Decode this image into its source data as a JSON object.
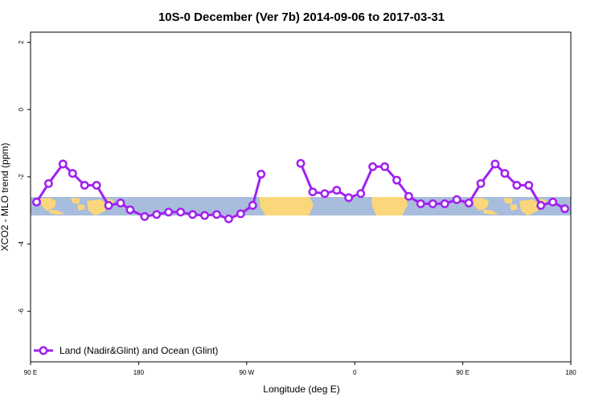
{
  "chart_data": {
    "type": "line",
    "title": "10S-0 December (Ver 7b)   2014-09-06 to 2017-03-31",
    "xlabel": "Longitude (deg E)",
    "ylabel": "XCO2 - MLO trend (ppm)",
    "xlim": [
      90,
      540
    ],
    "ylim": [
      -7.5,
      2.3
    ],
    "x_ticks": [
      {
        "value": 90,
        "label": "90 E"
      },
      {
        "value": 180,
        "label": "180"
      },
      {
        "value": 270,
        "label": "90 W"
      },
      {
        "value": 360,
        "label": "0"
      },
      {
        "value": 450,
        "label": "90 E"
      },
      {
        "value": 540,
        "label": "180"
      }
    ],
    "y_ticks": [
      {
        "value": 2,
        "label": "2"
      },
      {
        "value": 0,
        "label": "0"
      },
      {
        "value": -2,
        "label": "-2"
      },
      {
        "value": -4,
        "label": "-4"
      },
      {
        "value": -6,
        "label": "-6"
      }
    ],
    "grid": false,
    "legend_position": "bottom-left",
    "background_map": {
      "latitude_band": "10S-0",
      "ocean_color": "#a8bcdc",
      "land_color": "#fad77a"
    },
    "series": [
      {
        "name": "Land (Nadir&Glint) and Ocean (Glint)",
        "color": "#a020f0",
        "segments": [
          [
            {
              "x": 95,
              "y": -2.75
            },
            {
              "x": 105,
              "y": -2.2
            },
            {
              "x": 117,
              "y": -1.62
            },
            {
              "x": 125,
              "y": -1.9
            },
            {
              "x": 135,
              "y": -2.25
            },
            {
              "x": 145,
              "y": -2.25
            },
            {
              "x": 155,
              "y": -2.85
            },
            {
              "x": 165,
              "y": -2.78
            },
            {
              "x": 173,
              "y": -2.98
            },
            {
              "x": 185,
              "y": -3.18
            },
            {
              "x": 195,
              "y": -3.12
            },
            {
              "x": 205,
              "y": -3.05
            },
            {
              "x": 215,
              "y": -3.05
            },
            {
              "x": 225,
              "y": -3.12
            },
            {
              "x": 235,
              "y": -3.15
            },
            {
              "x": 245,
              "y": -3.12
            },
            {
              "x": 255,
              "y": -3.25
            },
            {
              "x": 265,
              "y": -3.1
            },
            {
              "x": 275,
              "y": -2.85
            },
            {
              "x": 282,
              "y": -1.92
            }
          ],
          [
            {
              "x": 315,
              "y": -1.6
            },
            {
              "x": 325,
              "y": -2.45
            },
            {
              "x": 335,
              "y": -2.5
            },
            {
              "x": 345,
              "y": -2.4
            },
            {
              "x": 355,
              "y": -2.62
            },
            {
              "x": 365,
              "y": -2.5
            },
            {
              "x": 375,
              "y": -1.7
            },
            {
              "x": 385,
              "y": -1.7
            },
            {
              "x": 395,
              "y": -2.1
            },
            {
              "x": 405,
              "y": -2.58
            },
            {
              "x": 415,
              "y": -2.8
            },
            {
              "x": 425,
              "y": -2.8
            },
            {
              "x": 435,
              "y": -2.8
            },
            {
              "x": 445,
              "y": -2.68
            },
            {
              "x": 455,
              "y": -2.78
            },
            {
              "x": 465,
              "y": -2.2
            },
            {
              "x": 477,
              "y": -1.62
            },
            {
              "x": 485,
              "y": -1.9
            },
            {
              "x": 495,
              "y": -2.25
            },
            {
              "x": 505,
              "y": -2.25
            },
            {
              "x": 515,
              "y": -2.85
            },
            {
              "x": 525,
              "y": -2.75
            },
            {
              "x": 535,
              "y": -2.95
            }
          ]
        ]
      }
    ]
  }
}
